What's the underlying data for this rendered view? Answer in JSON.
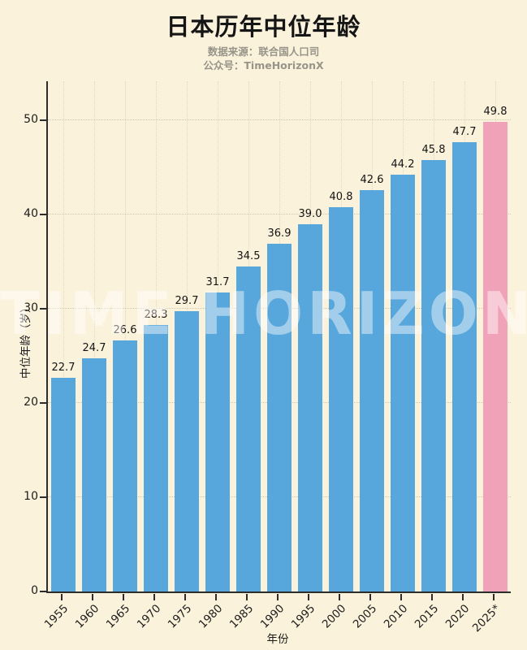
{
  "page": {
    "title": "日本历年中位年龄",
    "subtitle1": "数据来源：联合国人口司",
    "subtitle2": "公众号：TimeHorizonX",
    "watermark": "TIME HORIZON",
    "background_color": "#fbf2db"
  },
  "chart_data": {
    "type": "bar",
    "title": "日本历年中位年龄",
    "categories": [
      "1955",
      "1960",
      "1965",
      "1970",
      "1975",
      "1980",
      "1985",
      "1990",
      "1995",
      "2000",
      "2005",
      "2010",
      "2015",
      "2020",
      "2025*"
    ],
    "values": [
      22.7,
      24.7,
      26.6,
      28.3,
      29.7,
      31.7,
      34.5,
      36.9,
      39.0,
      40.8,
      42.6,
      44.2,
      45.8,
      47.7,
      49.8
    ],
    "value_labels": [
      "22.7",
      "24.7",
      "26.6",
      "28.3",
      "29.7",
      "31.7",
      "34.5",
      "36.9",
      "39.0",
      "40.8",
      "42.6",
      "44.2",
      "45.8",
      "47.7",
      "49.8"
    ],
    "xlabel": "年份",
    "ylabel": "中位年龄（岁）",
    "ylim": [
      0,
      54
    ],
    "yticks": [
      0,
      10,
      20,
      30,
      40,
      50
    ],
    "grid": true,
    "legend": false,
    "bar_color": "#57a7dc",
    "highlight_color": "#f0a2b8",
    "highlight_index": 14
  }
}
